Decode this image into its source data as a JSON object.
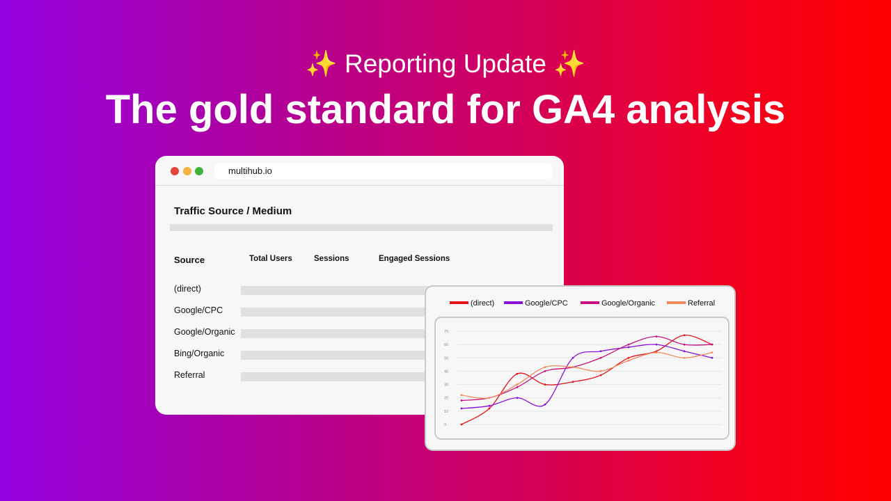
{
  "header": {
    "sparkle_left": "✨",
    "subtitle": "Reporting Update",
    "sparkle_right": "✨",
    "headline": "The gold standard for GA4 analysis"
  },
  "browser": {
    "url": "multihub.io"
  },
  "report": {
    "title": "Traffic Source / Medium",
    "columns": [
      "Source",
      "Total Users",
      "Sessions",
      "Engaged Sessions"
    ],
    "rows": [
      "(direct)",
      "Google/CPC",
      "Google/Organic",
      "Bing/Organic",
      "Referral"
    ]
  },
  "chart_data": {
    "type": "line",
    "x": [
      1,
      2,
      3,
      4,
      5,
      6,
      7,
      8,
      9,
      10
    ],
    "ylim": [
      0,
      70
    ],
    "yticks": [
      0,
      10,
      20,
      30,
      40,
      50,
      60,
      70
    ],
    "series": [
      {
        "name": "(direct)",
        "color": "#e4141b",
        "values": [
          0,
          12,
          38,
          30,
          32,
          37,
          50,
          55,
          67,
          60
        ]
      },
      {
        "name": "Google/CPC",
        "color": "#8b10d8",
        "values": [
          12,
          14,
          20,
          15,
          50,
          55,
          58,
          60,
          55,
          50
        ]
      },
      {
        "name": "Google/Organic",
        "color": "#c4107a",
        "values": [
          18,
          20,
          28,
          40,
          43,
          50,
          60,
          66,
          60,
          60
        ]
      },
      {
        "name": "Referral",
        "color": "#f08a5a",
        "values": [
          22,
          20,
          30,
          43,
          43,
          40,
          48,
          54,
          50,
          54
        ]
      }
    ]
  }
}
